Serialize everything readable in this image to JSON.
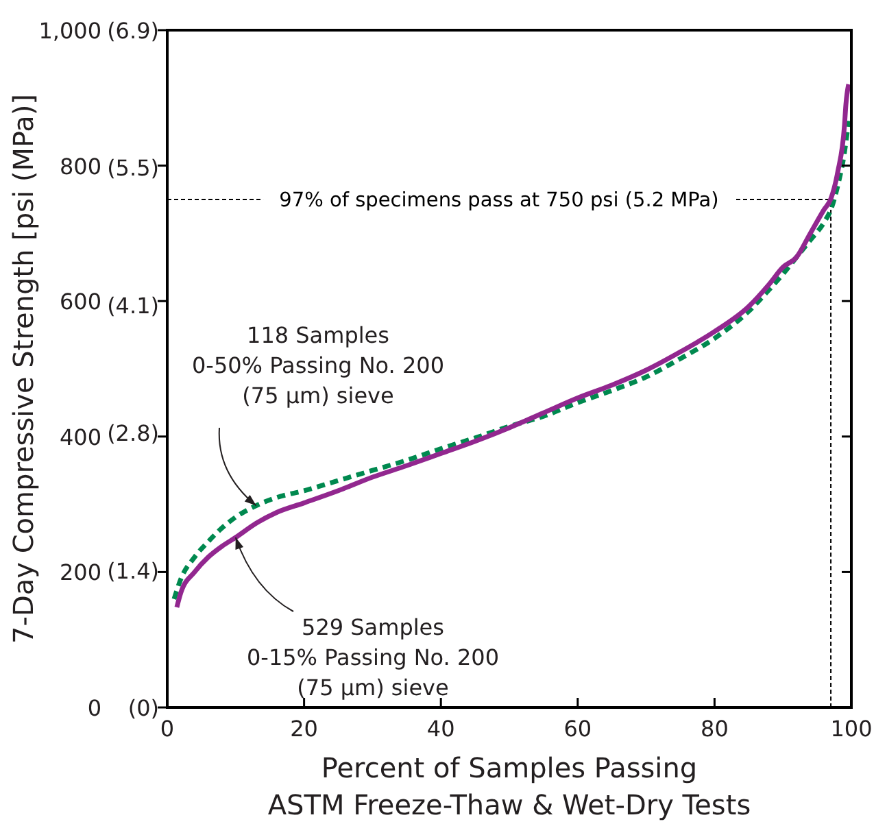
{
  "chart_data": {
    "type": "line",
    "xlabel": "Percent of Samples Passing\nASTM Freeze-Thaw & Wet-Dry Tests",
    "ylabel": "7-Day Compressive Strength [psi (MPa)]",
    "xlim": [
      0,
      100
    ],
    "ylim": [
      0,
      1000
    ],
    "xticks": [
      0,
      20,
      40,
      60,
      80,
      100
    ],
    "yticks": [
      0,
      200,
      400,
      600,
      800,
      {
        "value": 1000,
        "label": "1,000"
      }
    ],
    "y2lim": [
      0,
      6.9
    ],
    "y2ticks": [
      {
        "value": 0,
        "label": "(0)"
      },
      {
        "value": 1.4,
        "label": "(1.4)"
      },
      {
        "value": 2.8,
        "label": "(2.8)"
      },
      {
        "value": 4.1,
        "label": "(4.1)"
      },
      {
        "value": 5.5,
        "label": "(5.5)"
      },
      {
        "value": 6.9,
        "label": "(6.9)"
      }
    ],
    "grid": false,
    "marker": "none",
    "series": [
      {
        "color": "#00894f",
        "line_style": "dashed",
        "x": [
          1,
          2,
          4,
          6,
          8,
          10,
          13,
          16,
          20,
          25,
          30,
          35,
          40,
          45,
          50,
          55,
          60,
          65,
          70,
          75,
          80,
          85,
          88,
          90,
          92,
          94,
          96,
          97,
          98,
          99,
          99.6
        ],
        "values": [
          160,
          190,
          222,
          245,
          265,
          281,
          298,
          310,
          320,
          335,
          350,
          365,
          382,
          398,
          415,
          430,
          450,
          468,
          488,
          515,
          545,
          585,
          617,
          640,
          665,
          690,
          716,
          735,
          770,
          820,
          866
        ]
      },
      {
        "color": "#92278f",
        "line_style": "solid",
        "x": [
          1.4,
          2,
          4,
          6,
          8,
          10,
          13,
          16,
          20,
          25,
          30,
          35,
          40,
          45,
          50,
          55,
          60,
          65,
          70,
          75,
          80,
          85,
          88,
          90,
          92,
          94,
          96,
          97,
          98,
          99,
          99.2,
          99.6
        ],
        "values": [
          148,
          170,
          200,
          222,
          238,
          251,
          272,
          288,
          302,
          320,
          340,
          357,
          375,
          393,
          413,
          435,
          457,
          476,
          498,
          525,
          555,
          592,
          625,
          650,
          665,
          700,
          735,
          751,
          790,
          860,
          890,
          920
        ]
      }
    ],
    "ref_lines": [
      {
        "axis": "y",
        "value": 750,
        "label": "97% of specimens pass at 750 psi (5.2 MPa)",
        "line_style": "dashed",
        "color": "#000000"
      },
      {
        "axis": "x",
        "value": 97,
        "line_style": "dashed",
        "color": "#000000"
      }
    ],
    "annotations": [
      {
        "text": "118 Samples\n0-50% Passing No. 200\n(75 µm) sieve",
        "x": 13,
        "y": 298
      },
      {
        "text": "529 Samples\n0-15% Passing No. 200\n(75 µm) sieve",
        "x": 10,
        "y": 251
      }
    ]
  }
}
